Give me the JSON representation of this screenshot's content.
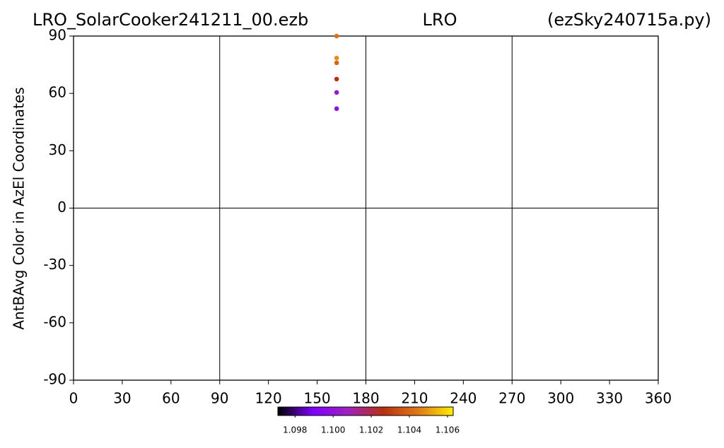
{
  "chart_data": {
    "type": "scatter",
    "title_left": "LRO_SolarCooker241211_00.ezb",
    "title_center": "LRO",
    "title_right": "(ezSky240715a.py)",
    "y_label": "AntBAvg Color in AzEl Coordinates",
    "x": [
      162,
      162,
      162,
      162,
      162,
      162
    ],
    "values": [
      90,
      78.5,
      76,
      67.5,
      60.5,
      52
    ],
    "color_values": [
      1.1043,
      1.1048,
      1.104,
      1.1025,
      1.1003,
      1.0998
    ],
    "xlim": [
      0,
      360
    ],
    "xticks": [
      0,
      30,
      60,
      90,
      120,
      150,
      180,
      210,
      240,
      270,
      300,
      330,
      360
    ],
    "ylim": [
      -90,
      90
    ],
    "yticks": [
      -90,
      -60,
      -30,
      0,
      30,
      60,
      90
    ],
    "xgrid": [
      90,
      180,
      270
    ],
    "ygrid": [
      0
    ],
    "clim": [
      1.0971,
      1.1063
    ],
    "cticks": [
      1.098,
      {
        "value": 1.1,
        "label": "1.100"
      },
      1.102,
      1.104,
      1.106
    ],
    "colormap": [
      "#000000",
      "#7f00ff",
      "#a020c0",
      "#b83010",
      "#e07818",
      "#ffee00"
    ]
  }
}
